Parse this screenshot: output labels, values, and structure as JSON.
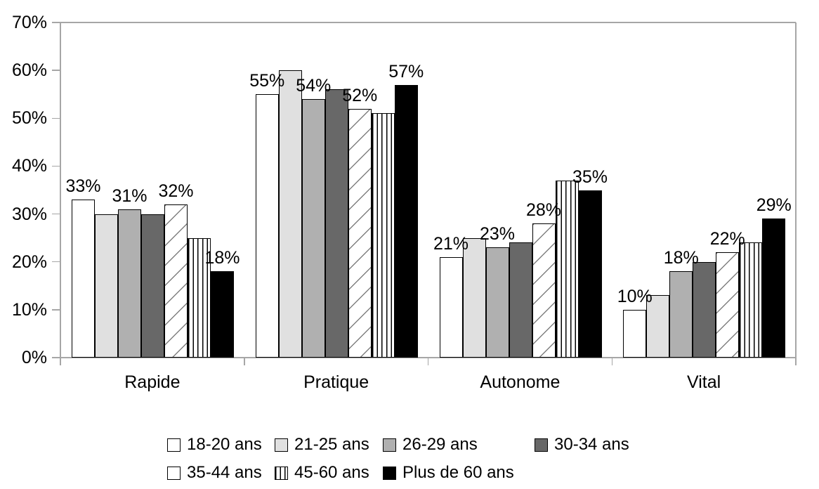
{
  "chart_data": {
    "type": "bar",
    "title": "",
    "categories": [
      "Rapide",
      "Pratique",
      "Autonome",
      "Vital"
    ],
    "series": [
      {
        "name": "18-20 ans",
        "fill": "white",
        "values": [
          33,
          55,
          21,
          10
        ]
      },
      {
        "name": "21-25 ans",
        "fill": "light-gray",
        "values": [
          30,
          60,
          25,
          13
        ]
      },
      {
        "name": "26-29 ans",
        "fill": "mid-gray",
        "values": [
          31,
          54,
          23,
          18
        ]
      },
      {
        "name": "30-34 ans",
        "fill": "dark-gray",
        "values": [
          30,
          56,
          24,
          20
        ]
      },
      {
        "name": "35-44 ans",
        "fill": "diagonal-hatch",
        "values": [
          32,
          52,
          28,
          22
        ]
      },
      {
        "name": "45-60 ans",
        "fill": "vertical-stripes",
        "values": [
          25,
          51,
          37,
          24
        ]
      },
      {
        "name": "Plus de 60 ans",
        "fill": "black",
        "values": [
          18,
          57,
          35,
          29
        ]
      }
    ],
    "data_labels": {
      "labeled_series_indices": [
        0,
        2,
        4,
        6
      ],
      "format": "{value}%",
      "shown": {
        "Rapide": [
          "33%",
          "31%",
          "32%",
          "18%"
        ],
        "Pratique": [
          "55%",
          "54%",
          "52%",
          "57%"
        ],
        "Autonome": [
          "21%",
          "23%",
          "28%",
          "35%"
        ],
        "Vital": [
          "10%",
          "18%",
          "22%",
          "29%"
        ]
      }
    },
    "y_axis": {
      "min": 0,
      "max": 70,
      "tick_step": 10,
      "tick_labels": [
        "0%",
        "10%",
        "20%",
        "30%",
        "40%",
        "50%",
        "60%",
        "70%"
      ]
    },
    "grid": "plot border only (top line visible), short tick marks on y-axis and at category boundaries",
    "legend": {
      "position": "bottom",
      "rows": [
        [
          "18-20 ans",
          "21-25 ans",
          "26-29 ans",
          "30-34 ans"
        ],
        [
          "35-44 ans",
          "45-60 ans",
          "Plus de 60 ans"
        ]
      ]
    },
    "colors": {
      "white": "#ffffff",
      "light_gray": "#e0e0e0",
      "mid_gray": "#b0b0b0",
      "dark_gray": "#686868",
      "black": "#000000",
      "axis_line": "#a6a6a6",
      "label_text": "#000000"
    }
  }
}
